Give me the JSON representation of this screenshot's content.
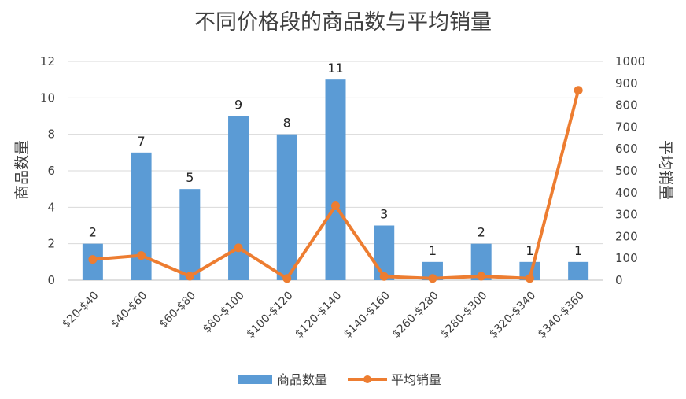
{
  "chart_data": {
    "type": "bar",
    "title": "不同价格段的商品数与平均销量",
    "categories": [
      "$20-$40",
      "$40-$60",
      "$60-$80",
      "$80-$100",
      "$100-$120",
      "$120-$140",
      "$140-$160",
      "$260-$280",
      "$280-$300",
      "$320-$340",
      "$340-$360"
    ],
    "series": [
      {
        "name": "商品数量",
        "type": "bar",
        "axis": "left",
        "values": [
          2,
          7,
          5,
          9,
          8,
          11,
          3,
          1,
          2,
          1,
          1
        ],
        "color": "#5B9BD5"
      },
      {
        "name": "平均销量",
        "type": "line",
        "axis": "right",
        "values": [
          95,
          113,
          18,
          148,
          8,
          340,
          17,
          8,
          18,
          8,
          868
        ],
        "color": "#ED7D31"
      }
    ],
    "ylabel": "商品数量",
    "y2label": "平均销量",
    "ylim": [
      0,
      12
    ],
    "y2lim": [
      0,
      1000
    ],
    "yticks": [
      "0",
      "2",
      "4",
      "6",
      "8",
      "10",
      "12"
    ],
    "y2ticks": [
      "0",
      "100",
      "200",
      "300",
      "400",
      "500",
      "600",
      "700",
      "800",
      "900",
      "1000"
    ],
    "grid": true,
    "legend": "bottom"
  }
}
